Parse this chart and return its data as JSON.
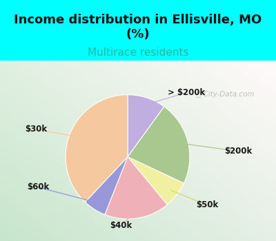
{
  "title": "Income distribution in Ellisville, MO\n(%)",
  "subtitle": "Multirace residents",
  "labels": [
    "> $200k",
    "$200k",
    "$50k",
    "$40k",
    "$60k",
    "$30k"
  ],
  "sizes": [
    10,
    22,
    7,
    17,
    6,
    38
  ],
  "colors": [
    "#c0aee0",
    "#a8c890",
    "#f0f0a0",
    "#f0b0b8",
    "#9898d8",
    "#f5c8a0"
  ],
  "title_fontsize": 13,
  "subtitle_fontsize": 11,
  "subtitle_color": "#2ab8a0",
  "background_cyan": "#00ffff",
  "watermark": "City-Data.com",
  "startangle": 90,
  "label_font_size": 8.5,
  "label_font_color": "#1a1a1a"
}
